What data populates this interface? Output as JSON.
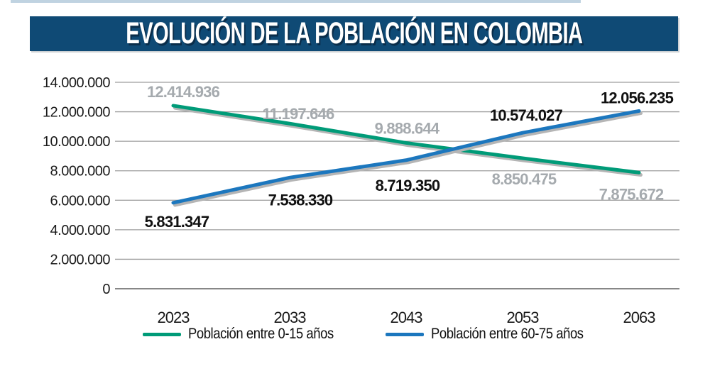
{
  "header": {
    "title": "EVOLUCIÓN DE LA POBLACIÓN EN COLOMBIA"
  },
  "colors": {
    "banner_bg": "#0f4a75",
    "top_strip": "#c0d3e1",
    "gridline": "#9d9d9d",
    "zero_line": "#878787",
    "line_shadow": "#b5b5b5",
    "series_green": "#009b78",
    "series_blue": "#1c77be",
    "label_gray": "#a5aaae",
    "label_black": "#111111"
  },
  "chart_data": {
    "type": "line",
    "title": "EVOLUCIÓN DE LA POBLACIÓN EN COLOMBIA",
    "categories": [
      "2023",
      "2033",
      "2043",
      "2053",
      "2063"
    ],
    "series": [
      {
        "name": "Población entre 0-15 años",
        "color": "#009b78",
        "label_color": "#a5aaae",
        "values": [
          12414936,
          11197646,
          9888644,
          8850475,
          7875672
        ],
        "labels": [
          "12.414.936",
          "11.197.646",
          "9.888.644",
          "8.850.475",
          "7.875.672"
        ]
      },
      {
        "name": "Población entre 60-75 años",
        "color": "#1c77be",
        "label_color": "#111111",
        "values": [
          5831347,
          7538330,
          8719350,
          10574027,
          12056235
        ],
        "labels": [
          "5.831.347",
          "7.538.330",
          "8.719.350",
          "10.574.027",
          "12.056.235"
        ]
      }
    ],
    "xlabel": "",
    "ylabel": "",
    "ylim": [
      0,
      14000000
    ],
    "ytick_step": 2000000,
    "ytick_labels": [
      "0",
      "2.000.000",
      "4.000.000",
      "6.000.000",
      "8.000.000",
      "10.000.000",
      "12.000.000",
      "14.000.000"
    ],
    "grid": true,
    "legend_position": "bottom"
  }
}
